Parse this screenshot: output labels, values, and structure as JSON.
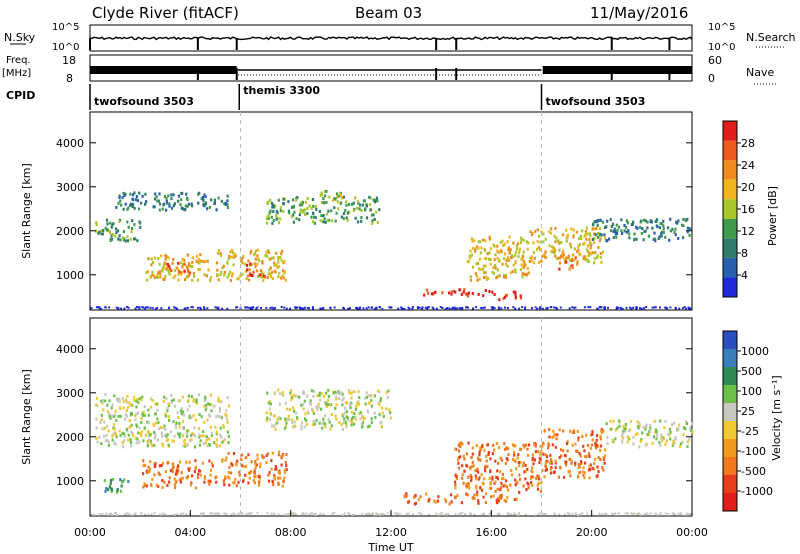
{
  "header": {
    "station": "Clyde River (fitACF)",
    "beam": "Beam 03",
    "date": "11/May/2016"
  },
  "top_panels": {
    "nsky_label": "N.Sky",
    "nsky_ticks": [
      "10^5",
      "10^0"
    ],
    "nsearch_label": "N.Search",
    "nsearch_ticks": [
      "10^5",
      "10^0"
    ],
    "freq_label": "Freq.",
    "freq_unit": "[MHz]",
    "freq_ticks": [
      "18",
      "8"
    ],
    "nave_label": "Nave",
    "nave_ticks": [
      "60",
      "0"
    ],
    "cpid_label": "CPID",
    "cpid_segments": [
      {
        "label": "twofsound 3503",
        "start_hour": 0,
        "end_hour": 5.95
      },
      {
        "label": "themis 3300",
        "start_hour": 5.95,
        "end_hour": 18.0
      },
      {
        "label": "twofsound 3503",
        "start_hour": 18.0,
        "end_hour": 24
      }
    ]
  },
  "x_axis": {
    "title": "Time UT",
    "ticks": [
      "00:00",
      "04:00",
      "08:00",
      "12:00",
      "16:00",
      "20:00",
      "00:00"
    ],
    "range_hours": [
      0,
      24
    ]
  },
  "power_panel": {
    "ylabel": "Slant Range [km]",
    "yticks": [
      "4000",
      "3000",
      "2000",
      "1000"
    ],
    "colorbar_label": "Power [dB]",
    "colorbar_ticks": [
      "28",
      "24",
      "20",
      "16",
      "12",
      "8",
      "4"
    ],
    "colors": [
      "#1f2bd8",
      "#2a5fb0",
      "#2f7a6a",
      "#3f9a4e",
      "#a8c82a",
      "#f0b41e",
      "#f08c1e",
      "#ef5a1e",
      "#e01e1e"
    ]
  },
  "velocity_panel": {
    "ylabel": "Slant Range [km]",
    "yticks": [
      "4000",
      "3000",
      "2000",
      "1000"
    ],
    "colorbar_label": "Velocity [m s⁻¹]",
    "colorbar_ticks": [
      "1000",
      "500",
      "100",
      "25",
      "-25",
      "-100",
      "-500",
      "-1000"
    ],
    "colors": [
      "#2a4fbf",
      "#3b7fb8",
      "#2f8a55",
      "#6cc04a",
      "#c8c8c0",
      "#f0c832",
      "#f09b1e",
      "#f0781e",
      "#e83c1e",
      "#e01e1e"
    ]
  },
  "chart_data": {
    "type": "heatmap",
    "x_unit": "hours UT",
    "y_unit": "km",
    "x_range": [
      0,
      24
    ],
    "y_range": [
      200,
      4700
    ],
    "power_regions": [
      {
        "t_start": 0.2,
        "t_end": 2.0,
        "r_start": 1800,
        "r_end": 2300,
        "level": 3
      },
      {
        "t_start": 2.2,
        "t_end": 4.8,
        "r_start": 900,
        "r_end": 1500,
        "level": 5
      },
      {
        "t_start": 3.0,
        "t_end": 4.0,
        "r_start": 1050,
        "r_end": 1300,
        "level": 7
      },
      {
        "t_start": 5.0,
        "t_end": 7.8,
        "r_start": 900,
        "r_end": 1600,
        "level": 5
      },
      {
        "t_start": 6.2,
        "t_end": 7.0,
        "r_start": 1000,
        "r_end": 1300,
        "level": 7
      },
      {
        "t_start": 1.0,
        "t_end": 5.5,
        "r_start": 2500,
        "r_end": 2900,
        "level": 2
      },
      {
        "t_start": 7.0,
        "t_end": 11.5,
        "r_start": 2200,
        "r_end": 2800,
        "level": 3
      },
      {
        "t_start": 9.0,
        "t_end": 10.0,
        "r_start": 2700,
        "r_end": 2950,
        "level": 4
      },
      {
        "t_start": 13.0,
        "t_end": 16.2,
        "r_start": 550,
        "r_end": 700,
        "level": 8
      },
      {
        "t_start": 16.2,
        "t_end": 17.2,
        "r_start": 450,
        "r_end": 650,
        "level": 8
      },
      {
        "t_start": 15.0,
        "t_end": 17.5,
        "r_start": 900,
        "r_end": 1900,
        "level": 5
      },
      {
        "t_start": 17.5,
        "t_end": 20.5,
        "r_start": 1300,
        "r_end": 2100,
        "level": 5
      },
      {
        "t_start": 18.6,
        "t_end": 19.4,
        "r_start": 1150,
        "r_end": 1500,
        "level": 7
      },
      {
        "t_start": 20.0,
        "t_end": 24.0,
        "r_start": 1800,
        "r_end": 2300,
        "level": 2
      }
    ],
    "velocity_regions": [
      {
        "t_start": 0.2,
        "t_end": 5.5,
        "r_start": 1800,
        "r_end": 3000,
        "level": 4
      },
      {
        "t_start": 2.0,
        "t_end": 5.0,
        "r_start": 850,
        "r_end": 1500,
        "level": 7
      },
      {
        "t_start": 5.2,
        "t_end": 7.8,
        "r_start": 900,
        "r_end": 1700,
        "level": 7
      },
      {
        "t_start": 7.0,
        "t_end": 12.0,
        "r_start": 2200,
        "r_end": 3100,
        "level": 4
      },
      {
        "t_start": 12.5,
        "t_end": 17.0,
        "r_start": 500,
        "r_end": 750,
        "level": 7
      },
      {
        "t_start": 14.5,
        "t_end": 18.0,
        "r_start": 750,
        "r_end": 1900,
        "level": 7
      },
      {
        "t_start": 18.0,
        "t_end": 20.5,
        "r_start": 1100,
        "r_end": 2200,
        "level": 7
      },
      {
        "t_start": 20.5,
        "t_end": 24.0,
        "r_start": 1800,
        "r_end": 2400,
        "level": 4
      },
      {
        "t_start": 0.5,
        "t_end": 1.5,
        "r_start": 700,
        "r_end": 1100,
        "level": 2
      }
    ]
  }
}
